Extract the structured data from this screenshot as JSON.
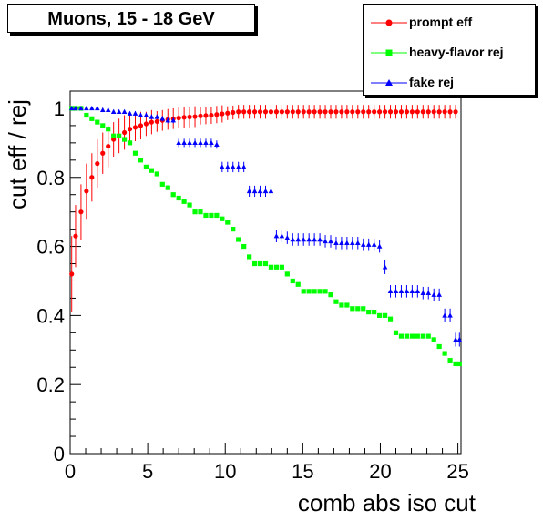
{
  "chart_data": {
    "type": "scatter",
    "title": "Muons, 15 - 18 GeV",
    "xlabel": "comb abs iso cut",
    "ylabel": "cut eff / rej",
    "xlim": [
      0,
      25.2
    ],
    "ylim": [
      0,
      1.05
    ],
    "x_ticks": [
      0,
      5,
      10,
      15,
      20,
      25
    ],
    "y_ticks": [
      0,
      0.2,
      0.4,
      0.6,
      0.8,
      1
    ],
    "x_tick_labels": [
      "0",
      "5",
      "10",
      "15",
      "20",
      "25"
    ],
    "y_tick_labels": [
      "0",
      "0.2",
      "0.4",
      "0.6",
      "0.8",
      "1"
    ],
    "legend_position": "top-right",
    "series": [
      {
        "name": "prompt eff",
        "color": "#ff0000",
        "marker": "circle",
        "x": [
          0.1,
          0.35,
          0.7,
          1.05,
          1.4,
          1.75,
          2.1,
          2.45,
          2.8,
          3.15,
          3.5,
          3.85,
          4.2,
          4.55,
          4.9,
          5.25,
          5.6,
          5.95,
          6.3,
          6.65,
          7.0,
          7.35,
          7.7,
          8.05,
          8.4,
          8.75,
          9.1,
          9.45,
          9.8,
          10.15,
          10.5,
          10.85,
          11.2,
          11.55,
          11.9,
          12.25,
          12.6,
          12.95,
          13.3,
          13.65,
          14.0,
          14.35,
          14.7,
          15.05,
          15.4,
          15.75,
          16.1,
          16.45,
          16.8,
          17.15,
          17.5,
          17.85,
          18.2,
          18.55,
          18.9,
          19.25,
          19.6,
          19.95,
          20.3,
          20.65,
          21.0,
          21.35,
          21.7,
          22.05,
          22.4,
          22.75,
          23.1,
          23.45,
          23.8,
          24.15,
          24.5,
          24.85
        ],
        "y": [
          0.52,
          0.63,
          0.7,
          0.76,
          0.8,
          0.84,
          0.87,
          0.89,
          0.91,
          0.92,
          0.93,
          0.94,
          0.945,
          0.95,
          0.955,
          0.96,
          0.962,
          0.965,
          0.968,
          0.97,
          0.972,
          0.974,
          0.975,
          0.976,
          0.978,
          0.979,
          0.98,
          0.982,
          0.984,
          0.986,
          0.988,
          0.99,
          0.99,
          0.99,
          0.99,
          0.99,
          0.99,
          0.99,
          0.99,
          0.99,
          0.99,
          0.99,
          0.99,
          0.99,
          0.99,
          0.99,
          0.99,
          0.99,
          0.99,
          0.99,
          0.99,
          0.99,
          0.99,
          0.99,
          0.99,
          0.99,
          0.99,
          0.99,
          0.99,
          0.99,
          0.99,
          0.99,
          0.99,
          0.99,
          0.99,
          0.99,
          0.99,
          0.99,
          0.99,
          0.99,
          0.99,
          0.99
        ],
        "yerr": [
          0.11,
          0.09,
          0.08,
          0.08,
          0.07,
          0.07,
          0.06,
          0.06,
          0.05,
          0.05,
          0.05,
          0.045,
          0.04,
          0.04,
          0.035,
          0.035,
          0.03,
          0.03,
          0.03,
          0.03,
          0.03,
          0.03,
          0.03,
          0.03,
          0.025,
          0.025,
          0.025,
          0.025,
          0.025,
          0.02,
          0.02,
          0.02,
          0.02,
          0.02,
          0.02,
          0.02,
          0.02,
          0.02,
          0.02,
          0.02,
          0.02,
          0.02,
          0.02,
          0.02,
          0.02,
          0.02,
          0.02,
          0.02,
          0.02,
          0.02,
          0.02,
          0.02,
          0.02,
          0.02,
          0.02,
          0.02,
          0.02,
          0.02,
          0.02,
          0.02,
          0.02,
          0.02,
          0.02,
          0.02,
          0.02,
          0.02,
          0.02,
          0.02,
          0.02,
          0.02,
          0.02,
          0.02
        ]
      },
      {
        "name": "heavy-flavor rej",
        "color": "#00ff00",
        "marker": "square",
        "x": [
          0.1,
          0.35,
          0.7,
          1.05,
          1.4,
          1.75,
          2.1,
          2.45,
          2.8,
          3.15,
          3.5,
          3.85,
          4.2,
          4.55,
          4.9,
          5.25,
          5.6,
          5.95,
          6.3,
          6.65,
          7.0,
          7.35,
          7.7,
          8.05,
          8.4,
          8.75,
          9.1,
          9.45,
          9.8,
          10.15,
          10.5,
          10.85,
          11.2,
          11.55,
          11.9,
          12.25,
          12.6,
          12.95,
          13.3,
          13.65,
          14.0,
          14.35,
          14.7,
          15.05,
          15.4,
          15.75,
          16.1,
          16.45,
          16.8,
          17.15,
          17.5,
          17.85,
          18.2,
          18.55,
          18.9,
          19.25,
          19.6,
          19.95,
          20.3,
          20.65,
          21.0,
          21.35,
          21.7,
          22.05,
          22.4,
          22.75,
          23.1,
          23.45,
          23.8,
          24.15,
          24.5,
          24.85,
          25.1
        ],
        "y": [
          1.0,
          1.0,
          1.0,
          0.98,
          0.97,
          0.96,
          0.95,
          0.94,
          0.92,
          0.92,
          0.91,
          0.9,
          0.87,
          0.85,
          0.83,
          0.82,
          0.81,
          0.78,
          0.77,
          0.75,
          0.74,
          0.73,
          0.72,
          0.7,
          0.7,
          0.69,
          0.69,
          0.69,
          0.68,
          0.67,
          0.65,
          0.62,
          0.6,
          0.57,
          0.55,
          0.55,
          0.55,
          0.54,
          0.54,
          0.54,
          0.52,
          0.5,
          0.49,
          0.47,
          0.47,
          0.47,
          0.47,
          0.47,
          0.46,
          0.44,
          0.43,
          0.43,
          0.42,
          0.42,
          0.42,
          0.41,
          0.41,
          0.4,
          0.4,
          0.39,
          0.35,
          0.34,
          0.34,
          0.34,
          0.34,
          0.34,
          0.34,
          0.33,
          0.31,
          0.29,
          0.27,
          0.26,
          0.26
        ]
      },
      {
        "name": "fake rej",
        "color": "#0000ff",
        "marker": "triangle",
        "x": [
          0.1,
          0.35,
          0.7,
          1.05,
          1.4,
          1.75,
          2.1,
          2.45,
          2.8,
          3.15,
          3.5,
          3.85,
          4.2,
          4.55,
          4.9,
          5.25,
          5.6,
          5.95,
          6.3,
          6.65,
          7.0,
          7.35,
          7.7,
          8.05,
          8.4,
          8.75,
          9.1,
          9.45,
          9.8,
          10.15,
          10.5,
          10.85,
          11.2,
          11.55,
          11.9,
          12.25,
          12.6,
          12.95,
          13.3,
          13.65,
          14.0,
          14.35,
          14.7,
          15.05,
          15.4,
          15.75,
          16.1,
          16.45,
          16.8,
          17.15,
          17.5,
          17.85,
          18.2,
          18.55,
          18.9,
          19.25,
          19.6,
          19.95,
          20.3,
          20.65,
          21.0,
          21.35,
          21.7,
          22.05,
          22.4,
          22.75,
          23.1,
          23.45,
          23.8,
          24.15,
          24.5,
          24.85,
          25.1
        ],
        "y": [
          1.0,
          1.0,
          1.0,
          1.0,
          1.0,
          1.0,
          0.995,
          0.995,
          0.99,
          0.99,
          0.99,
          0.985,
          0.985,
          0.98,
          0.98,
          0.975,
          0.975,
          0.97,
          0.965,
          0.965,
          0.9,
          0.9,
          0.9,
          0.9,
          0.9,
          0.9,
          0.9,
          0.895,
          0.83,
          0.83,
          0.83,
          0.83,
          0.83,
          0.76,
          0.76,
          0.76,
          0.76,
          0.76,
          0.63,
          0.63,
          0.625,
          0.62,
          0.62,
          0.62,
          0.62,
          0.62,
          0.62,
          0.615,
          0.615,
          0.61,
          0.61,
          0.61,
          0.61,
          0.61,
          0.605,
          0.605,
          0.605,
          0.6,
          0.54,
          0.47,
          0.47,
          0.47,
          0.47,
          0.47,
          0.47,
          0.465,
          0.465,
          0.46,
          0.46,
          0.4,
          0.4,
          0.33,
          0.33
        ],
        "yerr": [
          0.005,
          0.005,
          0.005,
          0.005,
          0.005,
          0.005,
          0.006,
          0.006,
          0.006,
          0.006,
          0.006,
          0.006,
          0.007,
          0.007,
          0.007,
          0.007,
          0.007,
          0.008,
          0.008,
          0.008,
          0.012,
          0.012,
          0.012,
          0.012,
          0.012,
          0.012,
          0.012,
          0.012,
          0.015,
          0.015,
          0.015,
          0.015,
          0.015,
          0.016,
          0.016,
          0.016,
          0.016,
          0.016,
          0.018,
          0.018,
          0.018,
          0.018,
          0.018,
          0.018,
          0.018,
          0.018,
          0.018,
          0.018,
          0.018,
          0.018,
          0.018,
          0.018,
          0.018,
          0.018,
          0.018,
          0.018,
          0.018,
          0.018,
          0.02,
          0.018,
          0.018,
          0.018,
          0.018,
          0.018,
          0.018,
          0.018,
          0.018,
          0.018,
          0.018,
          0.02,
          0.02,
          0.02,
          0.02
        ]
      }
    ]
  }
}
